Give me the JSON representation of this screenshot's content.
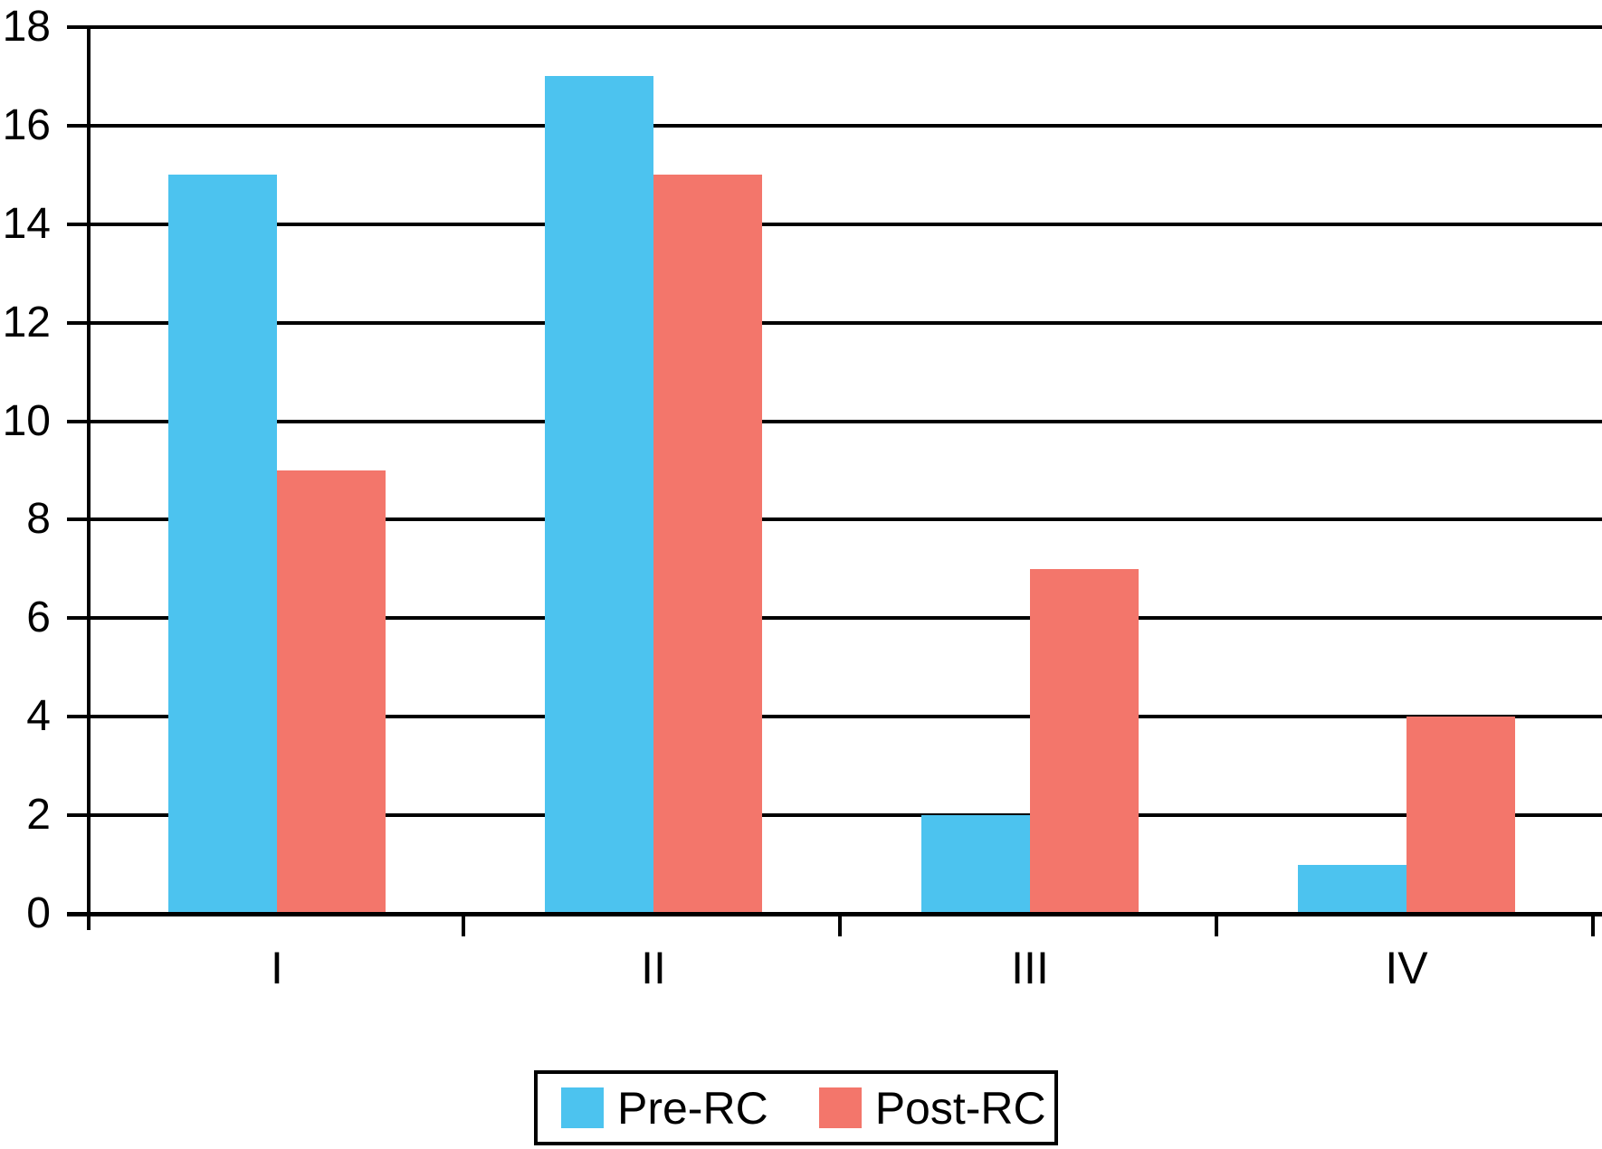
{
  "chart_data": {
    "type": "bar",
    "title": "",
    "xlabel": "",
    "ylabel": "",
    "categories": [
      "I",
      "II",
      "III",
      "IV"
    ],
    "series": [
      {
        "name": "Pre-RC",
        "color": "#4CC3EF",
        "values": [
          15,
          17,
          2,
          1
        ]
      },
      {
        "name": "Post-RC",
        "color": "#F3766B",
        "values": [
          9,
          15,
          7,
          4
        ]
      }
    ],
    "ylim": [
      0,
      18
    ],
    "yticks": [
      0,
      2,
      4,
      6,
      8,
      10,
      12,
      14,
      16,
      18
    ],
    "grid": "horizontal",
    "gridline_color": "#000000",
    "axis_color": "#000000",
    "legend_position": "bottom-center"
  }
}
